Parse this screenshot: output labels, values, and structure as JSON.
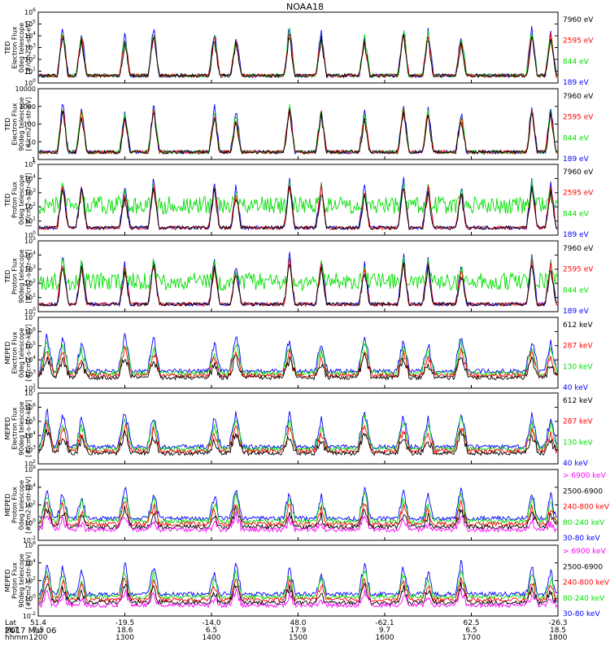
{
  "chart_data": {
    "type": "line",
    "title": "NOAA18",
    "x_axis_rows": [
      {
        "label": "Lat",
        "ticks": [
          "51.4",
          "-19.5",
          "-14.0",
          "48.0",
          "-62.1",
          "62.5",
          "-26.3"
        ]
      },
      {
        "label": "MLT",
        "ticks": [
          "7.5",
          "18.6",
          "6.5",
          "17.9",
          "9.7",
          "6.5",
          "18.5"
        ]
      },
      {
        "label": "hhmm",
        "ticks": [
          "1200",
          "1300",
          "1400",
          "1500",
          "1600",
          "1700",
          "1800"
        ]
      }
    ],
    "date": "2017 Mar 06",
    "x_range": [
      "1200",
      "1800"
    ],
    "panels": [
      {
        "ylabel": [
          "TED",
          "Electron Flux",
          "0deg telescope",
          "[#/cm2-s-str-eV]"
        ],
        "yticks": [
          "10^0",
          "10^1",
          "10^2",
          "10^3",
          "10^4",
          "10^5",
          "10^6"
        ],
        "ylim": [
          1,
          1000000
        ],
        "yscale": "log",
        "series": [
          {
            "name": "7960 eV",
            "color": "#000000"
          },
          {
            "name": "2595 eV",
            "color": "#ff0000"
          },
          {
            "name": "844 eV",
            "color": "#00dd00"
          },
          {
            "name": "189 eV",
            "color": "#0000ff"
          }
        ],
        "episodes": [
          1217,
          1230,
          1300,
          1320,
          1402,
          1417,
          1454,
          1516,
          1546,
          1613,
          1630,
          1653,
          1742,
          1755
        ]
      },
      {
        "ylabel": [
          "TED",
          "Electron Flux",
          "90deg telescope",
          "[#/cm2-s-str-eV]"
        ],
        "yticks": [
          "1",
          "10",
          "100",
          "1000",
          "10000"
        ],
        "ylim": [
          1,
          10000
        ],
        "yscale": "log",
        "series": [
          {
            "name": "7960 eV",
            "color": "#000000"
          },
          {
            "name": "2595 eV",
            "color": "#ff0000"
          },
          {
            "name": "844 eV",
            "color": "#00dd00"
          },
          {
            "name": "189 eV",
            "color": "#0000ff"
          }
        ],
        "episodes": [
          1217,
          1230,
          1300,
          1320,
          1402,
          1417,
          1454,
          1516,
          1546,
          1613,
          1630,
          1653,
          1742,
          1755
        ]
      },
      {
        "ylabel": [
          "TED",
          "Proton Flux",
          "0deg telescope",
          "[#/cm2-s-str-eV]"
        ],
        "yticks": [
          "10^0",
          "10^1",
          "10^2",
          "10^3",
          "10^4",
          "10^5"
        ],
        "ylim": [
          1,
          100000
        ],
        "yscale": "log",
        "series": [
          {
            "name": "7960 eV",
            "color": "#000000"
          },
          {
            "name": "2595 eV",
            "color": "#ff0000"
          },
          {
            "name": "844 eV",
            "color": "#00dd00"
          },
          {
            "name": "189 eV",
            "color": "#0000ff"
          }
        ],
        "episodes": [
          1217,
          1230,
          1300,
          1320,
          1402,
          1417,
          1454,
          1516,
          1546,
          1613,
          1630,
          1653,
          1742,
          1755
        ]
      },
      {
        "ylabel": [
          "TED",
          "Proton Flux",
          "90deg telescope",
          "[#/cm2-s-str-eV]"
        ],
        "yticks": [
          "10^0",
          "10^1",
          "10^2",
          "10^3",
          "10^4",
          "10^5"
        ],
        "ylim": [
          1,
          100000
        ],
        "yscale": "log",
        "series": [
          {
            "name": "7960 eV",
            "color": "#000000"
          },
          {
            "name": "2595 eV",
            "color": "#ff0000"
          },
          {
            "name": "844 eV",
            "color": "#00dd00"
          },
          {
            "name": "189 eV",
            "color": "#0000ff"
          }
        ],
        "episodes": [
          1217,
          1230,
          1300,
          1320,
          1402,
          1417,
          1454,
          1516,
          1546,
          1613,
          1630,
          1653,
          1742,
          1755
        ]
      },
      {
        "ylabel": [
          "MEPED",
          "Electron Flux",
          "0deg telescope",
          "[#/cm2-s-str-keV]"
        ],
        "yticks": [
          "10^2",
          "10^3",
          "10^4",
          "10^5",
          "10^6",
          "10^7"
        ],
        "ylim": [
          100,
          10000000
        ],
        "yscale": "log",
        "series": [
          {
            "name": "612 keV",
            "color": "#000000"
          },
          {
            "name": "287 keV",
            "color": "#ff0000"
          },
          {
            "name": "130 keV",
            "color": "#00dd00"
          },
          {
            "name": "40 keV",
            "color": "#0000ff"
          }
        ],
        "episodes": [
          1206,
          1217,
          1230,
          1300,
          1320,
          1402,
          1417,
          1454,
          1516,
          1546,
          1613,
          1630,
          1653,
          1742,
          1755
        ]
      },
      {
        "ylabel": [
          "MEPED",
          "Electron Flux",
          "90deg telescope",
          "[#/cm2-s-str-keV]"
        ],
        "yticks": [
          "10^2",
          "10^3",
          "10^4",
          "10^5",
          "10^6",
          "10^7"
        ],
        "ylim": [
          100,
          10000000
        ],
        "yscale": "log",
        "series": [
          {
            "name": "612 keV",
            "color": "#000000"
          },
          {
            "name": "287 keV",
            "color": "#ff0000"
          },
          {
            "name": "130 keV",
            "color": "#00dd00"
          },
          {
            "name": "40 keV",
            "color": "#0000ff"
          }
        ],
        "episodes": [
          1206,
          1217,
          1230,
          1300,
          1320,
          1402,
          1417,
          1454,
          1516,
          1546,
          1613,
          1630,
          1653,
          1742,
          1755
        ]
      },
      {
        "ylabel": [
          "MEPED",
          "Proton Flux",
          "0deg telescope",
          "[#/cm2-s-str-keV]"
        ],
        "yticks": [
          "10^-2",
          "10^0",
          "10^2",
          "10^4",
          "10^6"
        ],
        "ylim": [
          0.01,
          1000000
        ],
        "yscale": "log",
        "series": [
          {
            "name": "> 6900 keV",
            "color": "#ff00ff"
          },
          {
            "name": "2500-6900",
            "color": "#000000"
          },
          {
            "name": "240-800 keV",
            "color": "#ff0000"
          },
          {
            "name": "80-240 keV",
            "color": "#00dd00"
          },
          {
            "name": "30-80 keV",
            "color": "#0000ff"
          }
        ],
        "episodes": [
          1206,
          1217,
          1230,
          1300,
          1320,
          1402,
          1417,
          1454,
          1516,
          1546,
          1613,
          1630,
          1653,
          1742,
          1755
        ]
      },
      {
        "ylabel": [
          "MEPED",
          "Proton Flux",
          "90deg telescope",
          "[#/cm2-s-str-keV]"
        ],
        "yticks": [
          "10^-2",
          "10^0",
          "10^2",
          "10^4",
          "10^6"
        ],
        "ylim": [
          0.01,
          1000000
        ],
        "yscale": "log",
        "series": [
          {
            "name": "> 6900 keV",
            "color": "#ff00ff"
          },
          {
            "name": "2500-6900",
            "color": "#000000"
          },
          {
            "name": "240-800 keV",
            "color": "#ff0000"
          },
          {
            "name": "80-240 keV",
            "color": "#00dd00"
          },
          {
            "name": "30-80 keV",
            "color": "#0000ff"
          }
        ],
        "episodes": [
          1206,
          1217,
          1230,
          1300,
          1320,
          1402,
          1417,
          1454,
          1516,
          1546,
          1613,
          1630,
          1653,
          1742,
          1755
        ]
      }
    ]
  }
}
